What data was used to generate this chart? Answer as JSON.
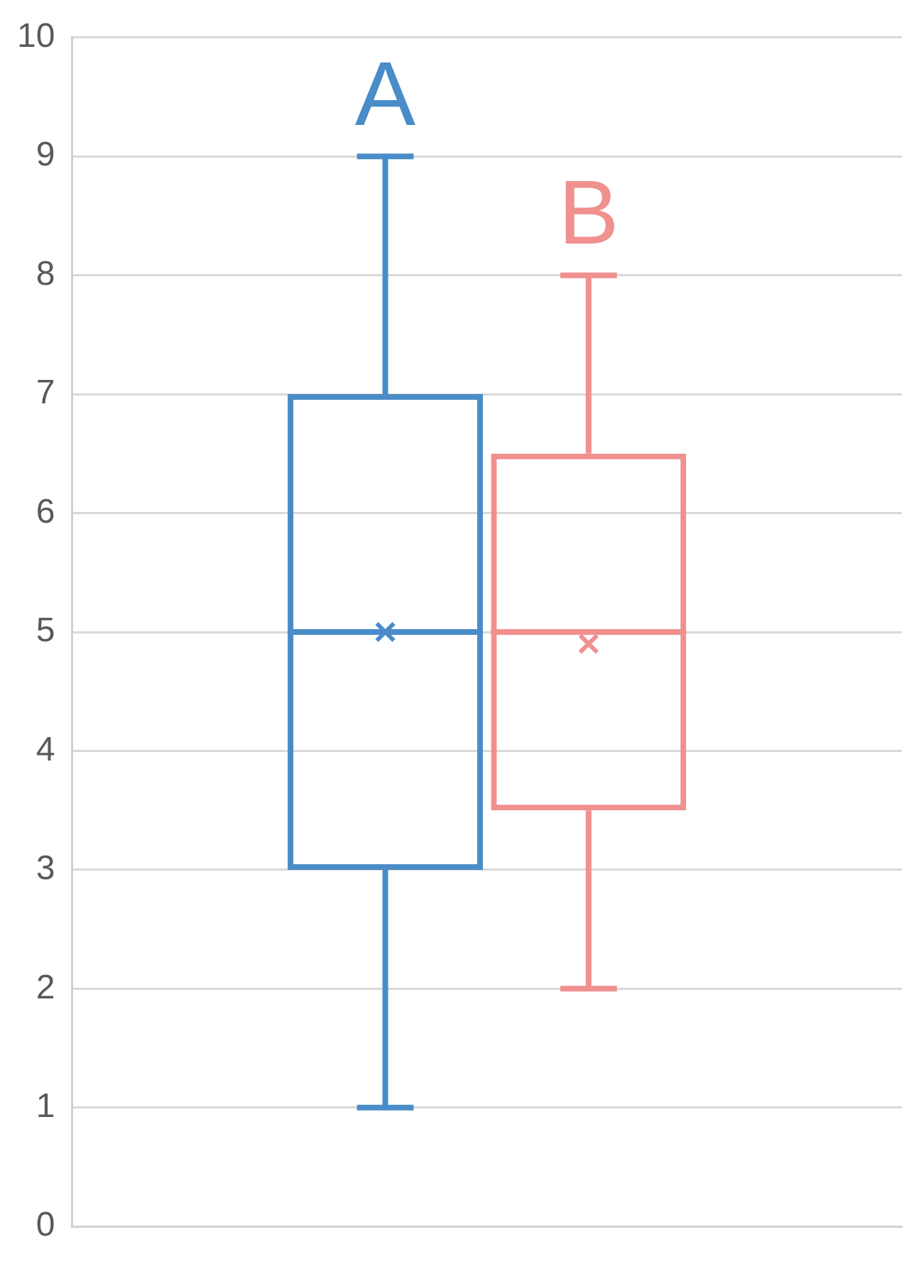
{
  "chart_data": {
    "type": "box",
    "categories": [
      null
    ],
    "series": [
      {
        "name": "A",
        "color": "#4a8cc8",
        "boxes": [
          {
            "low": 1,
            "q1": 3,
            "median": 5,
            "q3": 7,
            "high": 9,
            "mean": 5
          }
        ]
      },
      {
        "name": "B",
        "color": "#f0908f",
        "boxes": [
          {
            "low": 2,
            "q1": 3.5,
            "median": 5,
            "q3": 6.5,
            "high": 8,
            "mean": 4.9
          }
        ]
      }
    ],
    "ylim": [
      0,
      10
    ],
    "yticks": [
      0,
      1,
      2,
      3,
      4,
      5,
      6,
      7,
      8,
      9,
      10
    ],
    "grid": "y",
    "legend": false,
    "tick_labels": "y",
    "marker": "cross"
  }
}
